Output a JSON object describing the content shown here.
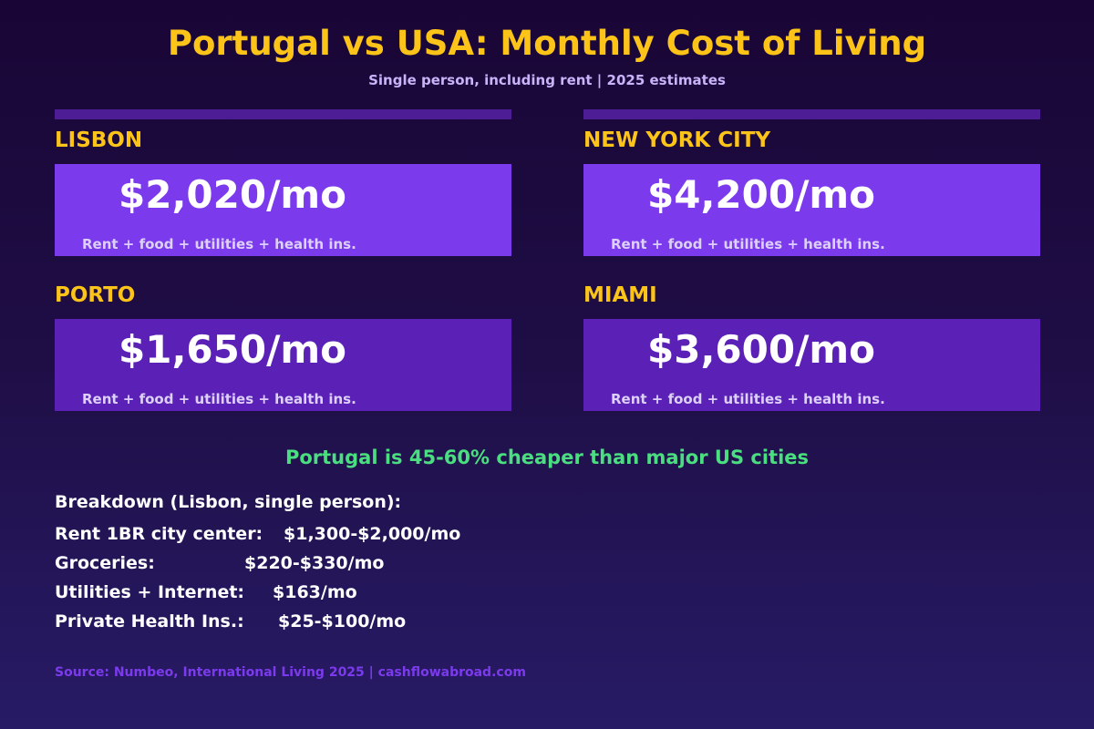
{
  "header": {
    "title": "Portugal vs USA: Monthly Cost of Living",
    "subtitle": "Single person, including rent | 2025 estimates"
  },
  "cities": [
    {
      "name": "LISBON",
      "price": "$2,020/mo",
      "description": "Rent + food + utilities + health ins."
    },
    {
      "name": "NEW YORK CITY",
      "price": "$4,200/mo",
      "description": "Rent + food + utilities + health ins."
    },
    {
      "name": "PORTO",
      "price": "$1,650/mo",
      "description": "Rent + food + utilities + health ins."
    },
    {
      "name": "MIAMI",
      "price": "$3,600/mo",
      "description": "Rent + food + utilities + health ins."
    }
  ],
  "highlight": "Portugal is 45-60% cheaper than major US cities",
  "breakdown": {
    "title": "Breakdown (Lisbon, single person):",
    "items": [
      {
        "label": "Rent 1BR city center:",
        "value": "$1,300-$2,000/mo"
      },
      {
        "label": "Groceries:",
        "value": "$220-$330/mo"
      },
      {
        "label": "Utilities + Internet:",
        "value": "$163/mo"
      },
      {
        "label": "Private Health Ins.:",
        "value": "$25-$100/mo"
      }
    ]
  },
  "source": "Source: Numbeo, International Living 2025 | cashflowabroad.com",
  "colors": {
    "accent": "#fcc419",
    "card_bright": "#7c3aed",
    "card_deep": "#5b21b6",
    "highlight": "#4ade80"
  }
}
